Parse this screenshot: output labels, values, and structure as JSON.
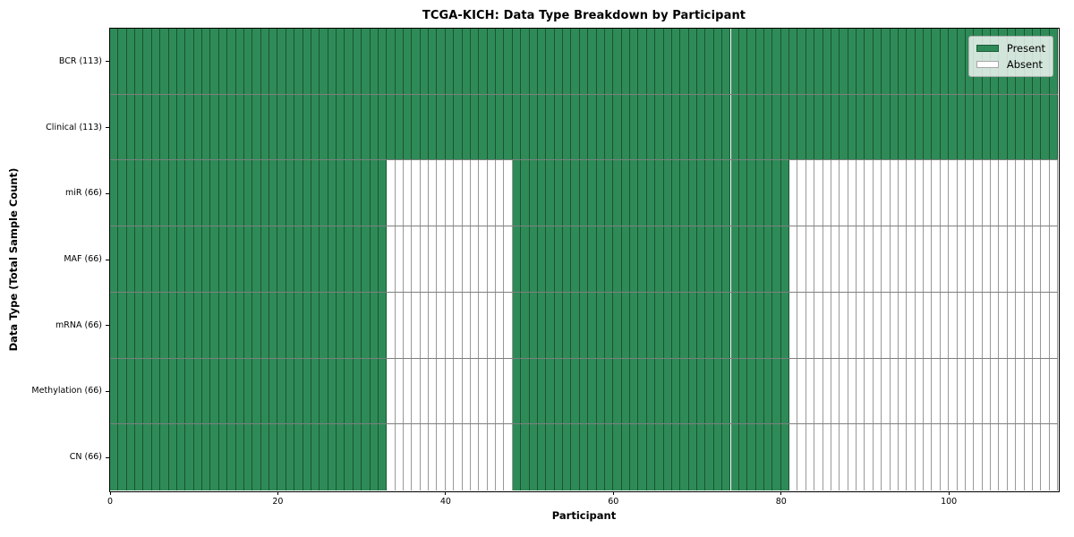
{
  "chart_data": {
    "type": "heatmap",
    "title": "TCGA-KICH: Data Type Breakdown by Participant",
    "xlabel": "Participant",
    "ylabel": "Data Type (Total Sample Count)",
    "n_participants": 113,
    "x_ticks": [
      0,
      20,
      40,
      60,
      80,
      100
    ],
    "grid": false,
    "colors": {
      "present": "#2e8b57",
      "absent": "#ffffff",
      "cell_edge": "rgba(0,0,0,0.4)",
      "row_separator": "rgba(0,0,0,0.5)",
      "axis": "#000000"
    },
    "legend": {
      "position": "upper right",
      "entries": [
        {
          "label": "Present",
          "color": "#2e8b57"
        },
        {
          "label": "Absent",
          "color": "#ffffff"
        }
      ]
    },
    "rows": [
      {
        "name": "BCR",
        "label": "BCR (113)",
        "total_samples": 113,
        "present_count": 113,
        "present_ranges": [
          [
            0,
            113
          ]
        ]
      },
      {
        "name": "Clinical",
        "label": "Clinical (113)",
        "total_samples": 113,
        "present_count": 113,
        "present_ranges": [
          [
            0,
            113
          ]
        ]
      },
      {
        "name": "miR",
        "label": "miR (66)",
        "total_samples": 66,
        "present_count": 66,
        "present_ranges": [
          [
            0,
            33
          ],
          [
            48,
            81
          ]
        ]
      },
      {
        "name": "MAF",
        "label": "MAF (66)",
        "total_samples": 66,
        "present_count": 66,
        "present_ranges": [
          [
            0,
            33
          ],
          [
            48,
            81
          ]
        ]
      },
      {
        "name": "mRNA",
        "label": "mRNA (66)",
        "total_samples": 66,
        "present_count": 66,
        "present_ranges": [
          [
            0,
            33
          ],
          [
            48,
            81
          ]
        ]
      },
      {
        "name": "Methylation",
        "label": "Methylation (66)",
        "total_samples": 66,
        "present_count": 66,
        "present_ranges": [
          [
            0,
            33
          ],
          [
            48,
            81
          ]
        ]
      },
      {
        "name": "CN",
        "label": "CN (66)",
        "total_samples": 66,
        "present_count": 66,
        "present_ranges": [
          [
            0,
            33
          ],
          [
            48,
            81
          ]
        ]
      }
    ]
  }
}
